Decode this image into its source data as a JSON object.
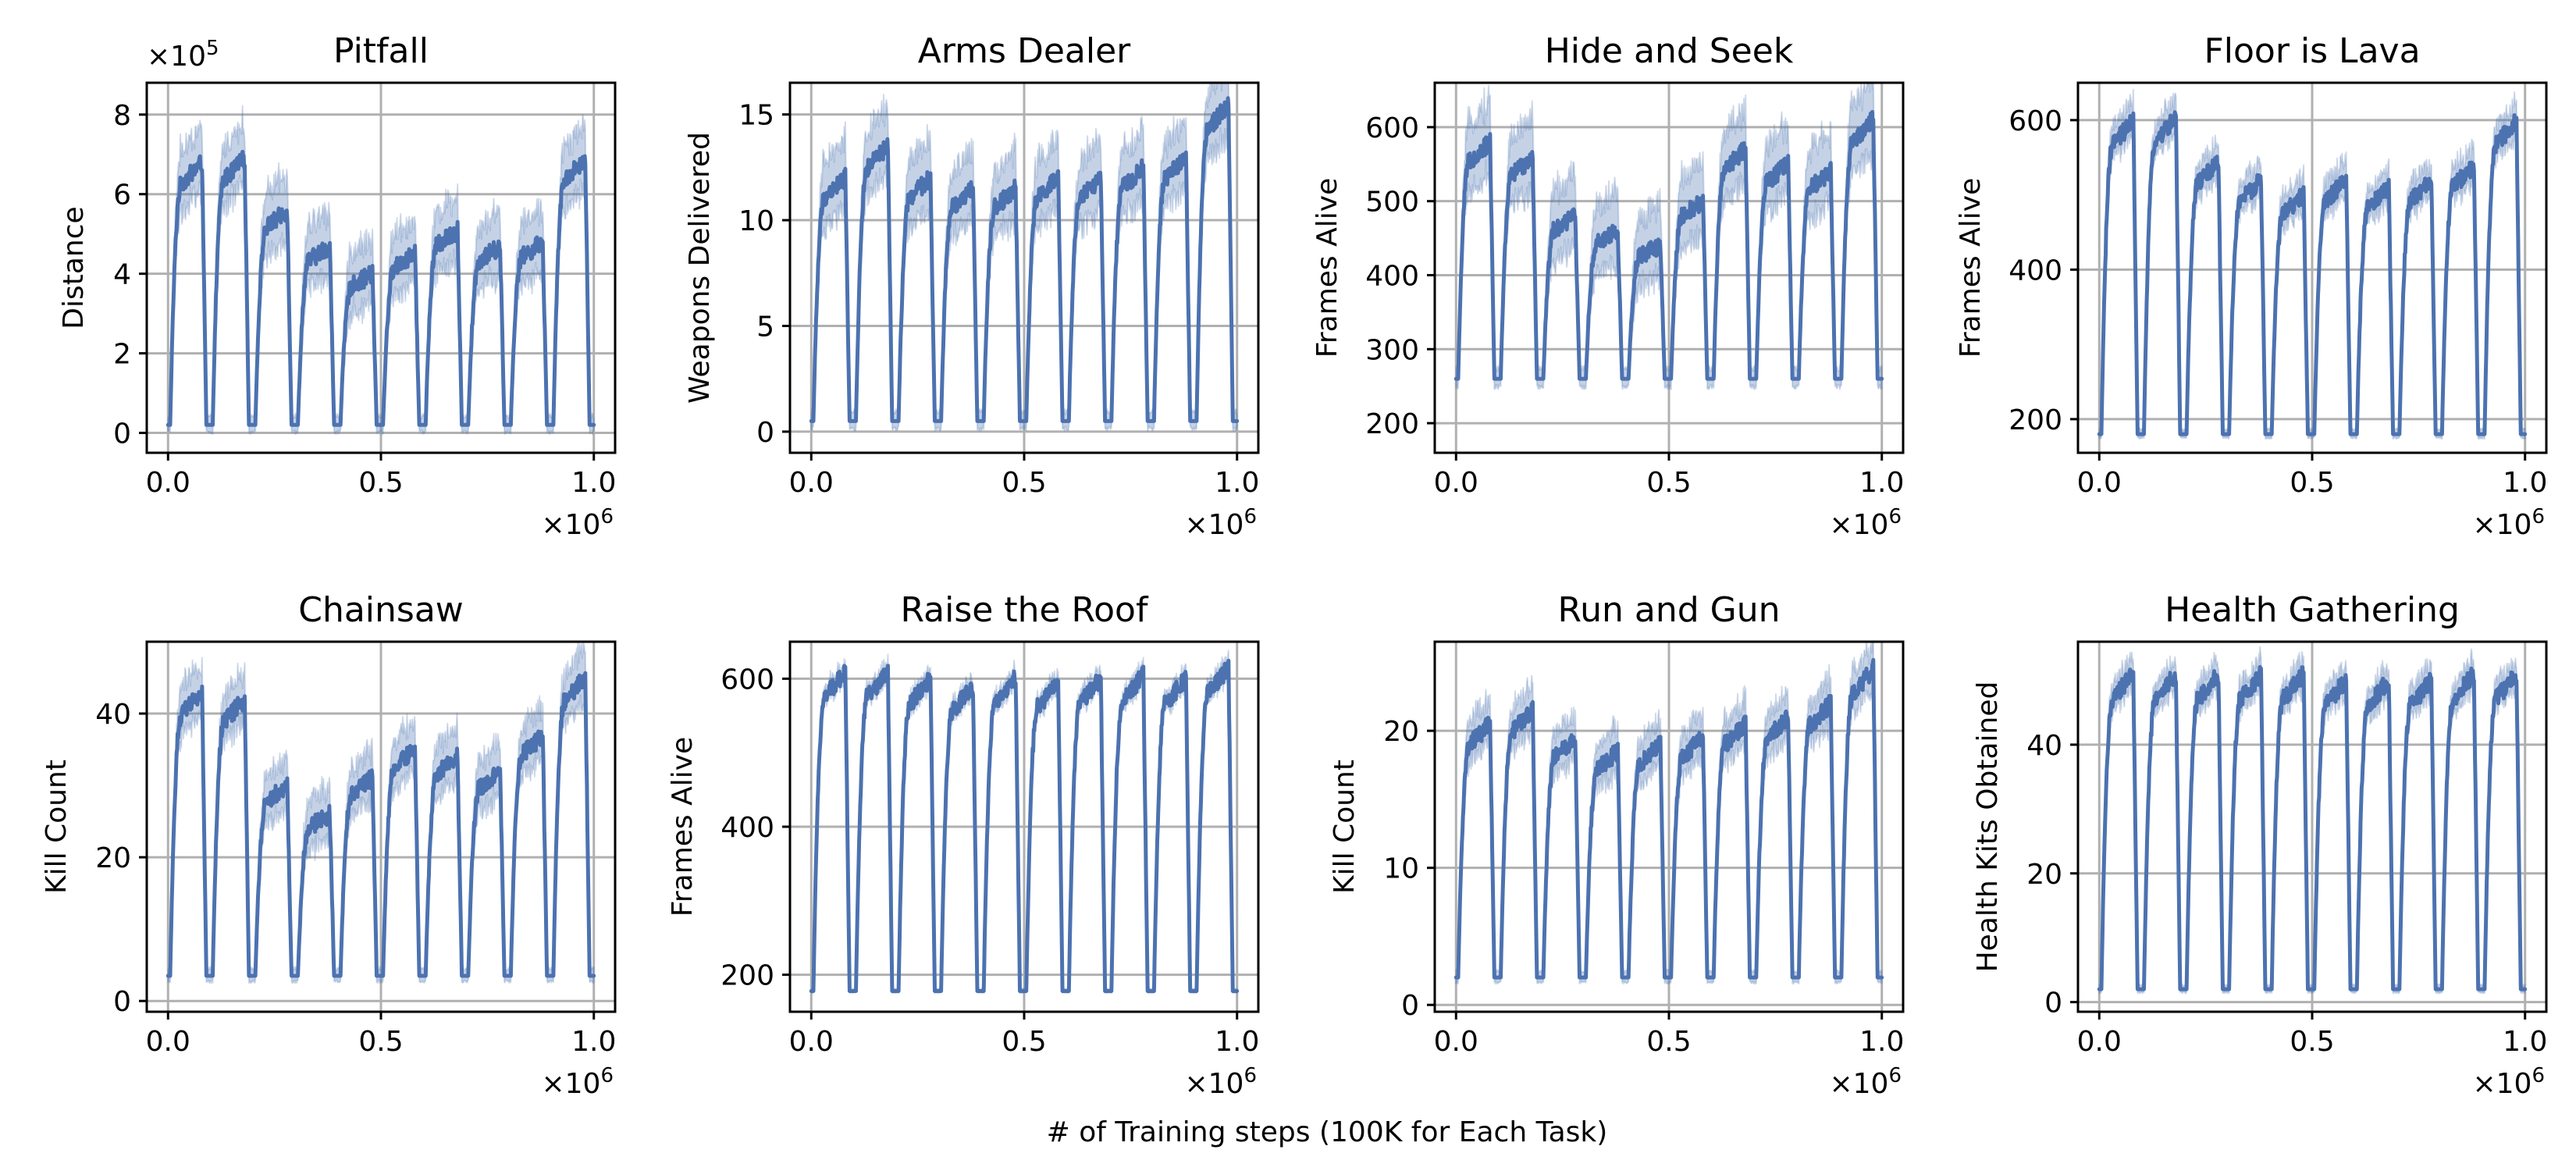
{
  "figure": {
    "xlabel": "# of Training steps (100K for Each Task)",
    "colors": {
      "line": "#4c72b0",
      "band": "#4c72b0",
      "grid": "#b0b0b0"
    }
  },
  "chart_data": [
    {
      "type": "line",
      "title": "Pitfall",
      "xlabel": "",
      "ylabel": "Distance",
      "x_multiplier_label": "×10",
      "x_multiplier_exp": "6",
      "y_multiplier_label": "×10",
      "y_multiplier_exp": "5",
      "xlim": [
        -0.05,
        1.05
      ],
      "ylim": [
        -0.5,
        8.8
      ],
      "xticks": [
        0.0,
        0.5,
        1.0
      ],
      "xtick_labels": [
        "0.0",
        "0.5",
        "1.0"
      ],
      "yticks": [
        0,
        2,
        4,
        6,
        8
      ],
      "ytick_labels": [
        "0",
        "2",
        "4",
        "6",
        "8"
      ],
      "grid": true,
      "num_tasks": 10,
      "cycle_shape": {
        "low": 0.2,
        "peaks": [
          6.8,
          6.9,
          5.6,
          4.7,
          4.0,
          4.5,
          5.1,
          4.7,
          4.8,
          6.9
        ],
        "band_width": 0.9
      }
    },
    {
      "type": "line",
      "title": "Arms Dealer",
      "xlabel": "",
      "ylabel": "Weapons Delivered",
      "x_multiplier_label": "×10",
      "x_multiplier_exp": "6",
      "xlim": [
        -0.05,
        1.05
      ],
      "ylim": [
        -1.0,
        16.5
      ],
      "xticks": [
        0.0,
        0.5,
        1.0
      ],
      "xtick_labels": [
        "0.0",
        "0.5",
        "1.0"
      ],
      "yticks": [
        0,
        5,
        10,
        15
      ],
      "ytick_labels": [
        "0",
        "5",
        "10",
        "15"
      ],
      "grid": true,
      "num_tasks": 10,
      "cycle_shape": {
        "low": 0.5,
        "peaks": [
          12.0,
          13.5,
          12.0,
          11.5,
          11.5,
          12.0,
          12.0,
          12.5,
          13.0,
          15.5
        ],
        "band_width": 1.8
      }
    },
    {
      "type": "line",
      "title": "Hide and Seek",
      "xlabel": "",
      "ylabel": "Frames Alive",
      "x_multiplier_label": "×10",
      "x_multiplier_exp": "6",
      "xlim": [
        -0.05,
        1.05
      ],
      "ylim": [
        160,
        660
      ],
      "xticks": [
        0.0,
        0.5,
        1.0
      ],
      "xtick_labels": [
        "0.0",
        "0.5",
        "1.0"
      ],
      "yticks": [
        200,
        300,
        400,
        500,
        600
      ],
      "ytick_labels": [
        "200",
        "300",
        "400",
        "500",
        "600"
      ],
      "grid": true,
      "num_tasks": 10,
      "cycle_shape": {
        "low": 260,
        "peaks": [
          580,
          560,
          480,
          460,
          440,
          500,
          570,
          550,
          540,
          610
        ],
        "band_width": 55
      }
    },
    {
      "type": "line",
      "title": "Floor is Lava",
      "xlabel": "",
      "ylabel": "Frames Alive",
      "x_multiplier_label": "×10",
      "x_multiplier_exp": "6",
      "xlim": [
        -0.05,
        1.05
      ],
      "ylim": [
        155,
        650
      ],
      "xticks": [
        0.0,
        0.5,
        1.0
      ],
      "xtick_labels": [
        "0.0",
        "0.5",
        "1.0"
      ],
      "yticks": [
        200,
        400,
        600
      ],
      "ytick_labels": [
        "200",
        "400",
        "600"
      ],
      "grid": true,
      "num_tasks": 10,
      "cycle_shape": {
        "low": 180,
        "peaks": [
          600,
          605,
          545,
          520,
          500,
          520,
          510,
          520,
          540,
          600
        ],
        "band_width": 25
      }
    },
    {
      "type": "line",
      "title": "Chainsaw",
      "xlabel": "",
      "ylabel": "Kill Count",
      "x_multiplier_label": "×10",
      "x_multiplier_exp": "6",
      "xlim": [
        -0.05,
        1.05
      ],
      "ylim": [
        -1.5,
        50
      ],
      "xticks": [
        0.0,
        0.5,
        1.0
      ],
      "xtick_labels": [
        "0.0",
        "0.5",
        "1.0"
      ],
      "yticks": [
        0,
        20,
        40
      ],
      "ytick_labels": [
        "0",
        "20",
        "40"
      ],
      "grid": true,
      "num_tasks": 10,
      "cycle_shape": {
        "low": 3.5,
        "peaks": [
          43,
          42,
          30,
          26,
          31,
          35,
          34,
          32,
          37,
          45
        ],
        "band_width": 4.0
      }
    },
    {
      "type": "line",
      "title": "Raise the Roof",
      "xlabel": "",
      "ylabel": "Frames Alive",
      "x_multiplier_label": "×10",
      "x_multiplier_exp": "6",
      "xlim": [
        -0.05,
        1.05
      ],
      "ylim": [
        150,
        650
      ],
      "xticks": [
        0.0,
        0.5,
        1.0
      ],
      "xtick_labels": [
        "0.0",
        "0.5",
        "1.0"
      ],
      "yticks": [
        200,
        400,
        600
      ],
      "ytick_labels": [
        "200",
        "400",
        "600"
      ],
      "grid": true,
      "num_tasks": 10,
      "cycle_shape": {
        "low": 178,
        "peaks": [
          610,
          610,
          600,
          590,
          600,
          595,
          600,
          605,
          600,
          615
        ],
        "band_width": 12
      }
    },
    {
      "type": "line",
      "title": "Run and Gun",
      "xlabel": "",
      "ylabel": "Kill Count",
      "x_multiplier_label": "×10",
      "x_multiplier_exp": "6",
      "xlim": [
        -0.05,
        1.05
      ],
      "ylim": [
        -0.5,
        26.5
      ],
      "xticks": [
        0.0,
        0.5,
        1.0
      ],
      "xtick_labels": [
        "0.0",
        "0.5",
        "1.0"
      ],
      "yticks": [
        0,
        10,
        20
      ],
      "ytick_labels": [
        "0",
        "10",
        "20"
      ],
      "grid": true,
      "num_tasks": 10,
      "cycle_shape": {
        "low": 2.0,
        "peaks": [
          20.5,
          21.5,
          19.5,
          18.5,
          19.0,
          19.5,
          20.5,
          21.0,
          22.0,
          24.5
        ],
        "band_width": 1.8
      }
    },
    {
      "type": "line",
      "title": "Health Gathering",
      "xlabel": "",
      "ylabel": "Health Kits Obtained",
      "x_multiplier_label": "×10",
      "x_multiplier_exp": "6",
      "xlim": [
        -0.05,
        1.05
      ],
      "ylim": [
        -1.5,
        56
      ],
      "xticks": [
        0.0,
        0.5,
        1.0
      ],
      "xtick_labels": [
        "0.0",
        "0.5",
        "1.0"
      ],
      "yticks": [
        0,
        20,
        40
      ],
      "ytick_labels": [
        "0",
        "20",
        "40"
      ],
      "grid": true,
      "num_tasks": 10,
      "cycle_shape": {
        "low": 2.0,
        "peaks": [
          51,
          51,
          51,
          51,
          51,
          50,
          50,
          50,
          51,
          51
        ],
        "band_width": 2.5
      }
    }
  ]
}
